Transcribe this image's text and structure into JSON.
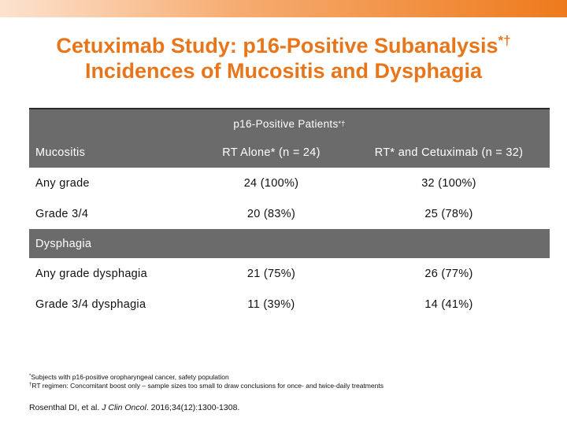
{
  "title": {
    "line1": "Cetuximab Study: p16-Positive Subanalysis",
    "line1_marks": "*†",
    "line2": "Incidences of Mucositis and Dysphagia"
  },
  "table": {
    "group_header": {
      "label": "p16-Positive Patients",
      "marks": "*†"
    },
    "column_headers": [
      "Mucositis",
      "RT Alone* (n = 24)",
      "RT* and Cetuximab (n = 32)"
    ],
    "mucositis_rows": [
      [
        "Any grade",
        "24 (100%)",
        "32 (100%)"
      ],
      [
        "Grade 3/4",
        "20 (83%)",
        "25 (78%)"
      ]
    ],
    "section_label": "Dysphagia",
    "dysphagia_rows": [
      [
        "Any grade dysphagia",
        "21 (75%)",
        "26 (77%)"
      ],
      [
        "Grade 3/4 dysphagia",
        "11 (39%)",
        "14 (41%)"
      ]
    ]
  },
  "footnotes": {
    "note1_mark": "*",
    "note1": "Subjects with p16-positive oropharyngeal cancer, safety population",
    "note2_mark": "†",
    "note2": "RT regimen: Concomitant boost only – sample sizes too small to draw conclusions for once- and twice-daily treatments"
  },
  "citation": {
    "authors": "Rosenthal DI, et al. ",
    "journal": "J Clin Oncol",
    "details": ". 2016;34(12):1300-1308."
  },
  "colors": {
    "title": "#e8751a",
    "header_fill": "#6b6b6b",
    "bar_accent": "#ee7a1c"
  }
}
